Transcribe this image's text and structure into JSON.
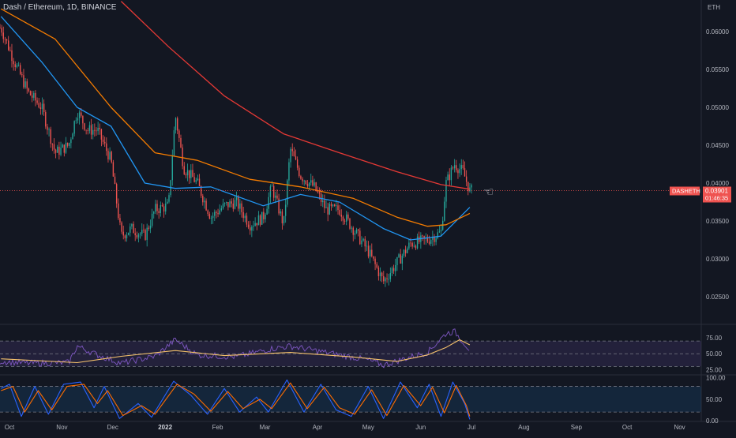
{
  "header": {
    "title": "Dash / Ethereum, 1D, BINANCE"
  },
  "price_scale": {
    "unit": "ETH",
    "ticks": [
      "0.06000",
      "0.05500",
      "0.05000",
      "0.04500",
      "0.04000",
      "0.03500",
      "0.03000",
      "0.02500"
    ],
    "symbol_tag": "DASHETH",
    "last_price": "0.03901",
    "countdown": "01:46:35"
  },
  "rsi_scale": {
    "ticks": [
      "75.00",
      "50.00",
      "25.00"
    ]
  },
  "stoch_scale": {
    "ticks": [
      "100.00",
      "50.00",
      "0.00"
    ]
  },
  "time_axis": {
    "ticks": [
      "Oct",
      "Nov",
      "Dec",
      "2022",
      "Feb",
      "Mar",
      "Apr",
      "May",
      "Jun",
      "Jul",
      "Aug",
      "Sep",
      "Oct",
      "Nov"
    ]
  },
  "colors": {
    "background": "#131722",
    "up": "#26a69a",
    "down": "#ef5350",
    "ma_fast": "#2196f3",
    "ma_mid": "#f57c00",
    "ma_slow": "#e53935",
    "rsi": "#7e57c2",
    "rsi_ma": "#f5c26b",
    "stoch_k": "#2962ff",
    "stoch_d": "#ff6d00",
    "price_tag": "#ef5350"
  },
  "icons": {
    "cursor": "pointing-hand-icon"
  },
  "chart_data": {
    "type": "candlestick",
    "symbol": "DASHETH",
    "exchange": "BINANCE",
    "interval": "1D",
    "y_unit": "ETH",
    "ylim": [
      0.0235,
      0.064
    ],
    "price_line": 0.03901,
    "close_path": [
      {
        "x": "2021-09-26",
        "y": 0.0605
      },
      {
        "x": "2021-10-03",
        "y": 0.0565
      },
      {
        "x": "2021-10-12",
        "y": 0.052
      },
      {
        "x": "2021-10-20",
        "y": 0.05
      },
      {
        "x": "2021-10-28",
        "y": 0.044
      },
      {
        "x": "2021-11-05",
        "y": 0.045
      },
      {
        "x": "2021-11-10",
        "y": 0.0495
      },
      {
        "x": "2021-11-16",
        "y": 0.047
      },
      {
        "x": "2021-11-22",
        "y": 0.047
      },
      {
        "x": "2021-11-30",
        "y": 0.043
      },
      {
        "x": "2021-12-06",
        "y": 0.033
      },
      {
        "x": "2021-12-12",
        "y": 0.034
      },
      {
        "x": "2021-12-20",
        "y": 0.033
      },
      {
        "x": "2021-12-26",
        "y": 0.0365
      },
      {
        "x": "2022-01-03",
        "y": 0.037
      },
      {
        "x": "2022-01-07",
        "y": 0.049
      },
      {
        "x": "2022-01-12",
        "y": 0.042
      },
      {
        "x": "2022-01-20",
        "y": 0.04
      },
      {
        "x": "2022-01-28",
        "y": 0.0355
      },
      {
        "x": "2022-02-05",
        "y": 0.037
      },
      {
        "x": "2022-02-12",
        "y": 0.0375
      },
      {
        "x": "2022-02-20",
        "y": 0.0345
      },
      {
        "x": "2022-02-28",
        "y": 0.0355
      },
      {
        "x": "2022-03-05",
        "y": 0.0395
      },
      {
        "x": "2022-03-12",
        "y": 0.0345
      },
      {
        "x": "2022-03-16",
        "y": 0.0445
      },
      {
        "x": "2022-03-22",
        "y": 0.041
      },
      {
        "x": "2022-03-30",
        "y": 0.0395
      },
      {
        "x": "2022-04-06",
        "y": 0.0365
      },
      {
        "x": "2022-04-14",
        "y": 0.0365
      },
      {
        "x": "2022-04-22",
        "y": 0.034
      },
      {
        "x": "2022-05-01",
        "y": 0.031
      },
      {
        "x": "2022-05-10",
        "y": 0.027
      },
      {
        "x": "2022-05-18",
        "y": 0.0295
      },
      {
        "x": "2022-05-26",
        "y": 0.032
      },
      {
        "x": "2022-06-05",
        "y": 0.0325
      },
      {
        "x": "2022-06-13",
        "y": 0.0335
      },
      {
        "x": "2022-06-16",
        "y": 0.04
      },
      {
        "x": "2022-06-21",
        "y": 0.0425
      },
      {
        "x": "2022-06-26",
        "y": 0.0415
      },
      {
        "x": "2022-06-30",
        "y": 0.039
      }
    ],
    "moving_averages": [
      {
        "name": "MA fast",
        "color": "#2196f3",
        "points": [
          {
            "x": "2021-09-26",
            "y": 0.062
          },
          {
            "x": "2021-10-20",
            "y": 0.056
          },
          {
            "x": "2021-11-10",
            "y": 0.05
          },
          {
            "x": "2021-11-30",
            "y": 0.0475
          },
          {
            "x": "2021-12-20",
            "y": 0.04
          },
          {
            "x": "2022-01-07",
            "y": 0.0393
          },
          {
            "x": "2022-01-28",
            "y": 0.0395
          },
          {
            "x": "2022-02-28",
            "y": 0.037
          },
          {
            "x": "2022-03-22",
            "y": 0.0385
          },
          {
            "x": "2022-04-14",
            "y": 0.0375
          },
          {
            "x": "2022-05-10",
            "y": 0.034
          },
          {
            "x": "2022-05-26",
            "y": 0.0325
          },
          {
            "x": "2022-06-13",
            "y": 0.033
          },
          {
            "x": "2022-06-30",
            "y": 0.0368
          }
        ]
      },
      {
        "name": "MA mid",
        "color": "#f57c00",
        "points": [
          {
            "x": "2021-09-26",
            "y": 0.063
          },
          {
            "x": "2021-10-28",
            "y": 0.059
          },
          {
            "x": "2021-11-30",
            "y": 0.05
          },
          {
            "x": "2021-12-26",
            "y": 0.044
          },
          {
            "x": "2022-01-20",
            "y": 0.043
          },
          {
            "x": "2022-02-20",
            "y": 0.0405
          },
          {
            "x": "2022-03-22",
            "y": 0.0395
          },
          {
            "x": "2022-04-22",
            "y": 0.038
          },
          {
            "x": "2022-05-18",
            "y": 0.0355
          },
          {
            "x": "2022-06-05",
            "y": 0.0343
          },
          {
            "x": "2022-06-16",
            "y": 0.0345
          },
          {
            "x": "2022-06-30",
            "y": 0.036
          }
        ]
      },
      {
        "name": "MA slow",
        "color": "#e53935",
        "points": [
          {
            "x": "2021-12-06",
            "y": 0.064
          },
          {
            "x": "2022-01-03",
            "y": 0.058
          },
          {
            "x": "2022-02-05",
            "y": 0.0515
          },
          {
            "x": "2022-03-12",
            "y": 0.0465
          },
          {
            "x": "2022-04-14",
            "y": 0.044
          },
          {
            "x": "2022-05-18",
            "y": 0.0415
          },
          {
            "x": "2022-06-13",
            "y": 0.0398
          },
          {
            "x": "2022-06-30",
            "y": 0.0392
          }
        ]
      }
    ],
    "rsi": {
      "ylim": [
        18,
        95
      ],
      "upper_band": 70,
      "lower_band": 30,
      "rsi_points": [
        {
          "x": "2021-09-26",
          "y": 38
        },
        {
          "x": "2021-10-12",
          "y": 35
        },
        {
          "x": "2021-11-05",
          "y": 36
        },
        {
          "x": "2021-11-10",
          "y": 62
        },
        {
          "x": "2021-11-22",
          "y": 48
        },
        {
          "x": "2021-12-06",
          "y": 35
        },
        {
          "x": "2021-12-26",
          "y": 46
        },
        {
          "x": "2022-01-07",
          "y": 72
        },
        {
          "x": "2022-01-20",
          "y": 48
        },
        {
          "x": "2022-02-12",
          "y": 45
        },
        {
          "x": "2022-03-05",
          "y": 58
        },
        {
          "x": "2022-03-16",
          "y": 62
        },
        {
          "x": "2022-04-06",
          "y": 52
        },
        {
          "x": "2022-05-01",
          "y": 40
        },
        {
          "x": "2022-05-10",
          "y": 32
        },
        {
          "x": "2022-05-26",
          "y": 45
        },
        {
          "x": "2022-06-05",
          "y": 52
        },
        {
          "x": "2022-06-16",
          "y": 82
        },
        {
          "x": "2022-06-21",
          "y": 85
        },
        {
          "x": "2022-06-30",
          "y": 56
        }
      ],
      "ma_points": [
        {
          "x": "2021-09-26",
          "y": 42
        },
        {
          "x": "2021-11-10",
          "y": 36
        },
        {
          "x": "2021-12-06",
          "y": 46
        },
        {
          "x": "2022-01-07",
          "y": 55
        },
        {
          "x": "2022-02-05",
          "y": 47
        },
        {
          "x": "2022-03-16",
          "y": 52
        },
        {
          "x": "2022-04-22",
          "y": 45
        },
        {
          "x": "2022-05-18",
          "y": 38
        },
        {
          "x": "2022-06-05",
          "y": 48
        },
        {
          "x": "2022-06-16",
          "y": 60
        },
        {
          "x": "2022-06-24",
          "y": 72
        },
        {
          "x": "2022-06-30",
          "y": 64
        }
      ]
    },
    "stochastic": {
      "ylim": [
        0,
        105
      ],
      "upper_band": 80,
      "lower_band": 20,
      "k_points": [
        {
          "x": "2021-09-26",
          "y": 75
        },
        {
          "x": "2021-10-01",
          "y": 85
        },
        {
          "x": "2021-10-08",
          "y": 10
        },
        {
          "x": "2021-10-16",
          "y": 80
        },
        {
          "x": "2021-10-24",
          "y": 15
        },
        {
          "x": "2021-11-02",
          "y": 85
        },
        {
          "x": "2021-11-12",
          "y": 90
        },
        {
          "x": "2021-11-20",
          "y": 30
        },
        {
          "x": "2021-11-26",
          "y": 80
        },
        {
          "x": "2021-12-05",
          "y": 5
        },
        {
          "x": "2021-12-16",
          "y": 40
        },
        {
          "x": "2021-12-24",
          "y": 8
        },
        {
          "x": "2022-01-06",
          "y": 92
        },
        {
          "x": "2022-01-16",
          "y": 60
        },
        {
          "x": "2022-01-26",
          "y": 15
        },
        {
          "x": "2022-02-05",
          "y": 75
        },
        {
          "x": "2022-02-14",
          "y": 20
        },
        {
          "x": "2022-02-24",
          "y": 55
        },
        {
          "x": "2022-03-03",
          "y": 20
        },
        {
          "x": "2022-03-14",
          "y": 95
        },
        {
          "x": "2022-03-24",
          "y": 20
        },
        {
          "x": "2022-04-03",
          "y": 85
        },
        {
          "x": "2022-04-12",
          "y": 25
        },
        {
          "x": "2022-04-21",
          "y": 10
        },
        {
          "x": "2022-05-01",
          "y": 80
        },
        {
          "x": "2022-05-10",
          "y": 5
        },
        {
          "x": "2022-05-20",
          "y": 90
        },
        {
          "x": "2022-05-30",
          "y": 30
        },
        {
          "x": "2022-06-06",
          "y": 85
        },
        {
          "x": "2022-06-13",
          "y": 10
        },
        {
          "x": "2022-06-20",
          "y": 90
        },
        {
          "x": "2022-06-27",
          "y": 40
        },
        {
          "x": "2022-06-30",
          "y": 3
        }
      ],
      "d_points": [
        {
          "x": "2021-09-26",
          "y": 70
        },
        {
          "x": "2021-10-03",
          "y": 80
        },
        {
          "x": "2021-10-10",
          "y": 20
        },
        {
          "x": "2021-10-18",
          "y": 70
        },
        {
          "x": "2021-10-26",
          "y": 25
        },
        {
          "x": "2021-11-04",
          "y": 80
        },
        {
          "x": "2021-11-14",
          "y": 85
        },
        {
          "x": "2021-11-22",
          "y": 40
        },
        {
          "x": "2021-11-28",
          "y": 70
        },
        {
          "x": "2021-12-07",
          "y": 12
        },
        {
          "x": "2021-12-18",
          "y": 35
        },
        {
          "x": "2021-12-26",
          "y": 15
        },
        {
          "x": "2022-01-08",
          "y": 85
        },
        {
          "x": "2022-01-18",
          "y": 62
        },
        {
          "x": "2022-01-28",
          "y": 22
        },
        {
          "x": "2022-02-07",
          "y": 68
        },
        {
          "x": "2022-02-16",
          "y": 28
        },
        {
          "x": "2022-02-26",
          "y": 50
        },
        {
          "x": "2022-03-05",
          "y": 28
        },
        {
          "x": "2022-03-16",
          "y": 88
        },
        {
          "x": "2022-03-26",
          "y": 28
        },
        {
          "x": "2022-04-05",
          "y": 78
        },
        {
          "x": "2022-04-14",
          "y": 30
        },
        {
          "x": "2022-04-23",
          "y": 15
        },
        {
          "x": "2022-05-03",
          "y": 72
        },
        {
          "x": "2022-05-12",
          "y": 12
        },
        {
          "x": "2022-05-22",
          "y": 82
        },
        {
          "x": "2022-06-01",
          "y": 35
        },
        {
          "x": "2022-06-08",
          "y": 78
        },
        {
          "x": "2022-06-15",
          "y": 18
        },
        {
          "x": "2022-06-22",
          "y": 82
        },
        {
          "x": "2022-06-28",
          "y": 35
        },
        {
          "x": "2022-06-30",
          "y": 10
        }
      ]
    }
  }
}
